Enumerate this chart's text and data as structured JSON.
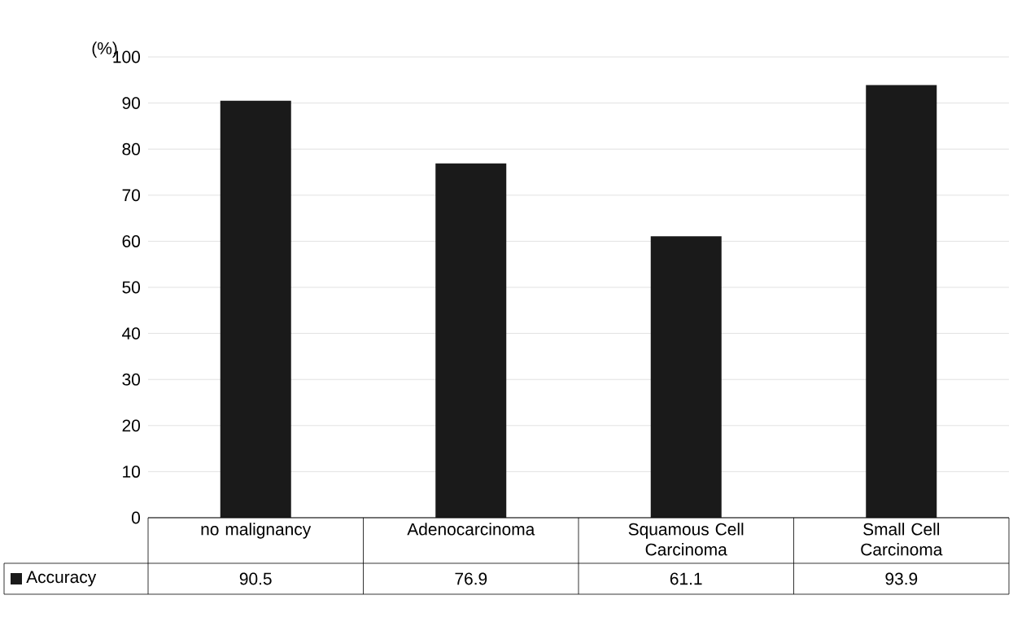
{
  "chart_data": {
    "type": "bar",
    "ylabel": "(%)",
    "categories": [
      "no malignancy",
      "Adenocarcinoma",
      "Squamous Cell Carcinoma",
      "Small Cell Carcinoma"
    ],
    "series": [
      {
        "name": "Accuracy",
        "color": "#1a1a1a",
        "values": [
          90.5,
          76.9,
          61.1,
          93.9
        ],
        "value_labels": [
          "90.5",
          "76.9",
          "61.1",
          "93.9"
        ]
      }
    ],
    "ylim": [
      0,
      100
    ],
    "yticks": [
      0,
      10,
      20,
      30,
      40,
      50,
      60,
      70,
      80,
      90,
      100
    ],
    "grid": "y",
    "legend": "bottom"
  }
}
